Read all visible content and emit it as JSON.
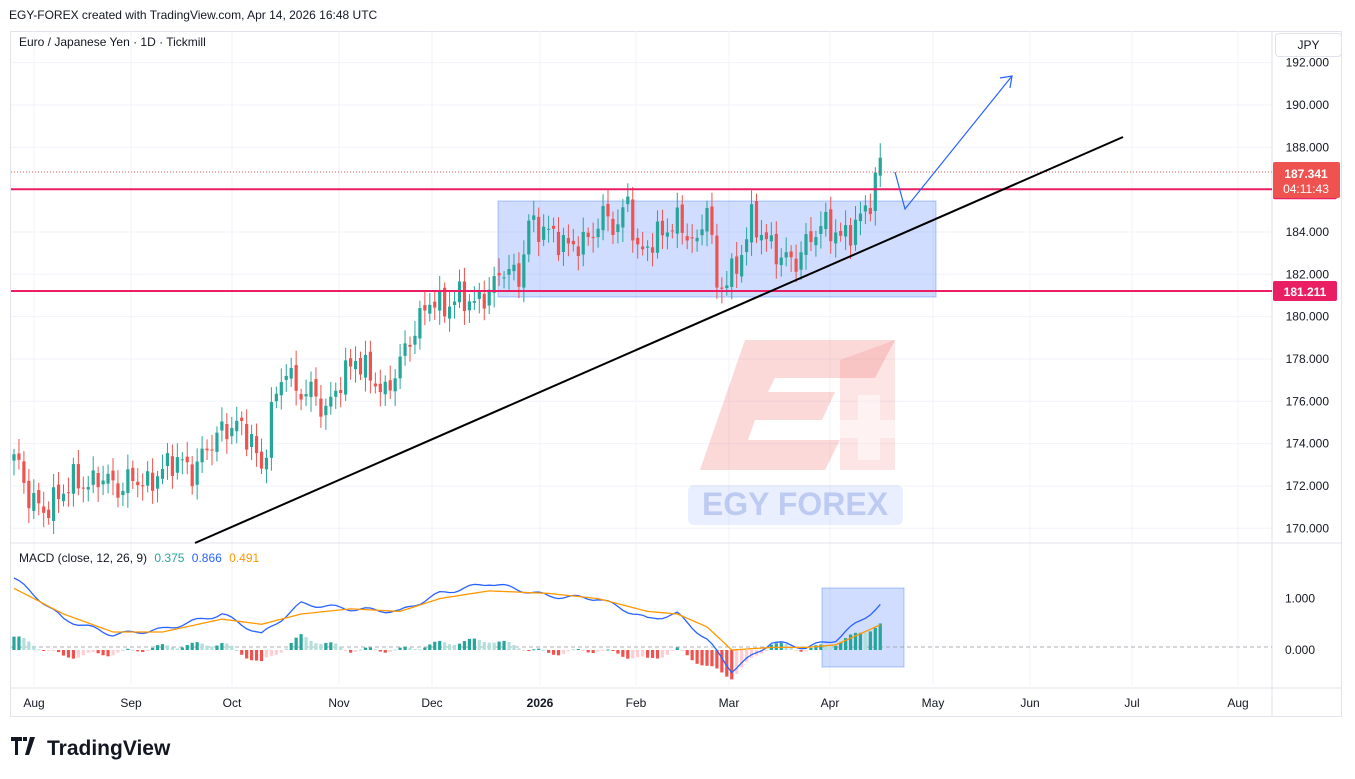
{
  "header": {
    "text": "EGY-FOREX created with TradingView.com, Apr 14, 2026 16:48 UTC"
  },
  "symbol": {
    "text": "Euro / Japanese Yen · 1D · Tickmill"
  },
  "currency": "JPY",
  "watermark": {
    "text": "EGY FOREX"
  },
  "branding": {
    "name": "TradingView"
  },
  "macd": {
    "label": "MACD (close, 12, 26, 9)",
    "hist": "0.375",
    "macd": "0.866",
    "signal": "0.491"
  },
  "colors": {
    "up": "#26a69a",
    "down": "#ef5350",
    "level": "#e91e63",
    "range": "#2962ff",
    "macd": "#2962ff",
    "signal": "#ff9800"
  },
  "chart_data": {
    "type": "candlestick",
    "title": "",
    "x_ticks": [
      "Aug",
      "Sep",
      "Oct",
      "Nov",
      "Dec",
      "2026",
      "Feb",
      "Mar",
      "Apr",
      "May",
      "Jun",
      "Jul",
      "Aug"
    ],
    "y_ticks": [
      "192.000",
      "190.000",
      "188.000",
      "186.000",
      "184.000",
      "182.000",
      "180.000",
      "178.000",
      "176.000",
      "174.000",
      "172.000",
      "170.000"
    ],
    "ylim": [
      169.4,
      193.4
    ],
    "current_price": "187.341",
    "countdown": "04:11:43",
    "levels": [
      {
        "value": 186.018,
        "label": "186.018"
      },
      {
        "value": 181.211,
        "label": "181.211"
      }
    ],
    "close_series_approx": [
      [
        0,
        173.5
      ],
      [
        3,
        171.5
      ],
      [
        6,
        170.8
      ],
      [
        9,
        171.5
      ],
      [
        12,
        172.3
      ],
      [
        15,
        172.0
      ],
      [
        18,
        172.5
      ],
      [
        21,
        171.8
      ],
      [
        24,
        172.4
      ],
      [
        27,
        172.0
      ],
      [
        30,
        172.8
      ],
      [
        33,
        173.3
      ],
      [
        36,
        172.6
      ],
      [
        39,
        173.8
      ],
      [
        42,
        174.6
      ],
      [
        45,
        174.9
      ],
      [
        48,
        174.2
      ],
      [
        50,
        172.6
      ],
      [
        52,
        175.5
      ],
      [
        55,
        177.7
      ],
      [
        57,
        176.4
      ],
      [
        60,
        176.5
      ],
      [
        63,
        175.5
      ],
      [
        66,
        177.0
      ],
      [
        69,
        178.0
      ],
      [
        72,
        177.2
      ],
      [
        75,
        176.3
      ],
      [
        78,
        177.9
      ],
      [
        81,
        179.4
      ],
      [
        84,
        180.8
      ],
      [
        87,
        180.4
      ],
      [
        90,
        181.0
      ],
      [
        93,
        180.6
      ],
      [
        96,
        181.2
      ],
      [
        99,
        182.3
      ],
      [
        102,
        181.8
      ],
      [
        104,
        184.4
      ],
      [
        108,
        184.0
      ],
      [
        112,
        183.3
      ],
      [
        116,
        183.6
      ],
      [
        119,
        184.8
      ],
      [
        122,
        184.2
      ],
      [
        124,
        185.6
      ],
      [
        126,
        182.9
      ],
      [
        130,
        183.8
      ],
      [
        134,
        184.5
      ],
      [
        138,
        183.3
      ],
      [
        140,
        185.5
      ],
      [
        142,
        181.3
      ],
      [
        146,
        182.3
      ],
      [
        149,
        184.6
      ],
      [
        152,
        183.6
      ],
      [
        155,
        182.8
      ],
      [
        158,
        182.6
      ],
      [
        161,
        183.8
      ],
      [
        164,
        184.4
      ],
      [
        167,
        183.7
      ],
      [
        170,
        184.3
      ],
      [
        173,
        185.5
      ],
      [
        175,
        187.3
      ]
    ],
    "macd_series_approx": [
      [
        0,
        1.4
      ],
      [
        10,
        0.6
      ],
      [
        20,
        0.3
      ],
      [
        30,
        0.4
      ],
      [
        42,
        0.7
      ],
      [
        50,
        0.3
      ],
      [
        58,
        0.9
      ],
      [
        68,
        0.8
      ],
      [
        78,
        0.75
      ],
      [
        86,
        1.1
      ],
      [
        96,
        1.3
      ],
      [
        108,
        1.05
      ],
      [
        118,
        1.0
      ],
      [
        128,
        0.6
      ],
      [
        134,
        0.7
      ],
      [
        140,
        0.2
      ],
      [
        145,
        -0.4
      ],
      [
        153,
        0.15
      ],
      [
        160,
        0.05
      ],
      [
        166,
        0.2
      ],
      [
        175,
        0.87
      ]
    ],
    "signal_series_approx": [
      [
        0,
        1.2
      ],
      [
        10,
        0.7
      ],
      [
        20,
        0.35
      ],
      [
        30,
        0.35
      ],
      [
        42,
        0.6
      ],
      [
        50,
        0.5
      ],
      [
        58,
        0.7
      ],
      [
        68,
        0.8
      ],
      [
        78,
        0.75
      ],
      [
        86,
        1.0
      ],
      [
        96,
        1.15
      ],
      [
        108,
        1.1
      ],
      [
        118,
        1.0
      ],
      [
        128,
        0.75
      ],
      [
        134,
        0.7
      ],
      [
        140,
        0.45
      ],
      [
        145,
        0.0
      ],
      [
        153,
        0.05
      ],
      [
        160,
        0.05
      ],
      [
        166,
        0.1
      ],
      [
        175,
        0.49
      ]
    ],
    "macd_ticks": [
      "1.000",
      "0.000"
    ],
    "macd_ylim": [
      -0.7,
      1.75
    ]
  }
}
